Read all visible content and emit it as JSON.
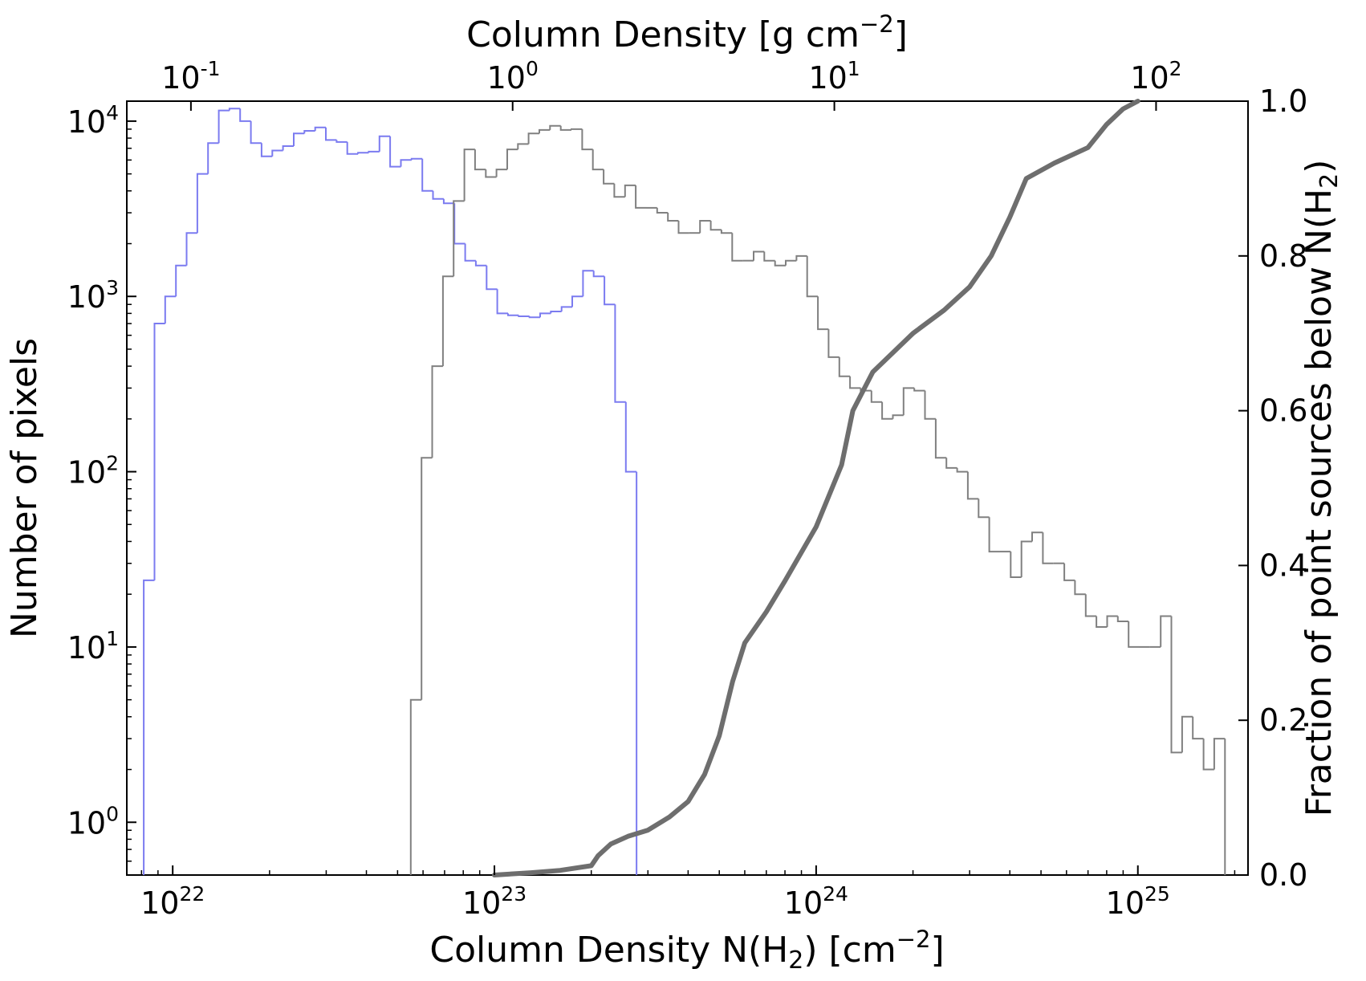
{
  "chart_data": {
    "type": "histogram",
    "x_axis_bottom": {
      "label_prefix": "Column Density N(H",
      "label_sub": "2",
      "label_mid": ") [cm",
      "label_sup": "−2",
      "label_suffix": "]",
      "scale": "log",
      "range": [
        7.2e+21,
        2.2e+25
      ],
      "ticks": [
        {
          "value": 1e+22,
          "base": "10",
          "exp": "22"
        },
        {
          "value": 1e+23,
          "base": "10",
          "exp": "23"
        },
        {
          "value": 1e+24,
          "base": "10",
          "exp": "24"
        },
        {
          "value": 1e+25,
          "base": "10",
          "exp": "25"
        }
      ]
    },
    "x_axis_top": {
      "label_prefix": "Column Density [g cm",
      "label_sup": "−2",
      "label_suffix": "]",
      "scale": "log",
      "ticks": [
        {
          "value": 0.1,
          "base": "10",
          "exp": "-1"
        },
        {
          "value": 1,
          "base": "10",
          "exp": "0"
        },
        {
          "value": 10,
          "base": "10",
          "exp": "1"
        },
        {
          "value": 100,
          "base": "10",
          "exp": "2"
        }
      ]
    },
    "y_axis_left": {
      "label": "Number of pixels",
      "scale": "log",
      "range": [
        0.5,
        13000
      ],
      "ticks": [
        {
          "value": 1,
          "base": "10",
          "exp": "0"
        },
        {
          "value": 10,
          "base": "10",
          "exp": "1"
        },
        {
          "value": 100,
          "base": "10",
          "exp": "2"
        },
        {
          "value": 1000,
          "base": "10",
          "exp": "3"
        },
        {
          "value": 10000,
          "base": "10",
          "exp": "4"
        }
      ]
    },
    "y_axis_right": {
      "label_prefix": "Fraction of point sources below N(H",
      "label_sub": "2",
      "label_suffix": ")",
      "scale": "linear",
      "range": [
        0,
        1
      ],
      "ticks": [
        "0.0",
        "0.2",
        "0.4",
        "0.6",
        "0.8",
        "1.0"
      ]
    },
    "series": [
      {
        "type": "step-histogram",
        "color": "#7b7bf0",
        "axis": "left",
        "bin_log_start": 21.91,
        "bin_log_width": 0.0333,
        "counts": [
          24,
          700,
          1000,
          1500,
          2300,
          5000,
          7500,
          11500,
          11800,
          10000,
          7500,
          6300,
          6800,
          7200,
          8500,
          8800,
          9200,
          7800,
          7600,
          6500,
          6600,
          6700,
          8200,
          5500,
          6000,
          6100,
          4000,
          3600,
          3400,
          2000,
          1600,
          1500,
          1100,
          800,
          780,
          770,
          760,
          800,
          820,
          870,
          1000,
          1400,
          1300,
          900,
          250,
          100
        ]
      },
      {
        "type": "step-histogram",
        "color": "#808080",
        "axis": "left",
        "bin_log_start": 22.74,
        "bin_log_width": 0.0333,
        "counts": [
          5,
          120,
          400,
          1300,
          3500,
          6900,
          5300,
          4800,
          5300,
          6900,
          7400,
          8500,
          8900,
          9400,
          8900,
          9000,
          6900,
          5300,
          4400,
          3700,
          4300,
          3200,
          3200,
          3000,
          2700,
          2300,
          2300,
          2700,
          2400,
          2300,
          1600,
          1600,
          1800,
          1600,
          1500,
          1600,
          1700,
          1000,
          650,
          450,
          350,
          300,
          290,
          250,
          200,
          210,
          300,
          290,
          200,
          120,
          105,
          100,
          70,
          55,
          35,
          35,
          25,
          40,
          45,
          30,
          30,
          24,
          20,
          15,
          13,
          15,
          14,
          10,
          10,
          10,
          15,
          2.5,
          4,
          3,
          2,
          3
        ]
      },
      {
        "type": "cumulative-line",
        "color": "#6e6e6e",
        "axis": "right",
        "points": [
          [
            1e+23,
            0.0
          ],
          [
            1.3e+23,
            0.003
          ],
          [
            1.6e+23,
            0.006
          ],
          [
            2e+23,
            0.012
          ],
          [
            2.1e+23,
            0.025
          ],
          [
            2.3e+23,
            0.04
          ],
          [
            2.6e+23,
            0.05
          ],
          [
            3e+23,
            0.058
          ],
          [
            3.5e+23,
            0.075
          ],
          [
            4e+23,
            0.095
          ],
          [
            4.5e+23,
            0.13
          ],
          [
            5e+23,
            0.18
          ],
          [
            5.5e+23,
            0.25
          ],
          [
            6e+23,
            0.3
          ],
          [
            7e+23,
            0.34
          ],
          [
            8e+23,
            0.38
          ],
          [
            1e+24,
            0.45
          ],
          [
            1.2e+24,
            0.53
          ],
          [
            1.3e+24,
            0.6
          ],
          [
            1.5e+24,
            0.65
          ],
          [
            2e+24,
            0.7
          ],
          [
            2.5e+24,
            0.73
          ],
          [
            3e+24,
            0.76
          ],
          [
            3.5e+24,
            0.8
          ],
          [
            4e+24,
            0.85
          ],
          [
            4.5e+24,
            0.9
          ],
          [
            5.5e+24,
            0.92
          ],
          [
            7e+24,
            0.94
          ],
          [
            8e+24,
            0.97
          ],
          [
            9e+24,
            0.99
          ],
          [
            1e+25,
            1.0
          ]
        ]
      }
    ],
    "grid": false,
    "legend": "none"
  }
}
